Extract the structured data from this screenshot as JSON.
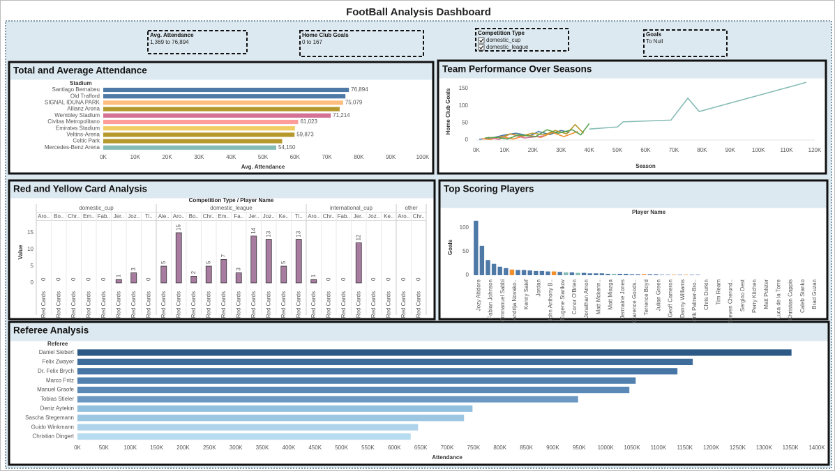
{
  "title": "FootBall Analysis Dashboard",
  "filters": [
    {
      "title": "Avg. Attendance",
      "value": "1,369 to 76,894"
    },
    {
      "title": "Home Club Goals",
      "value": "0 to 167"
    },
    {
      "title": "Competition Type",
      "options": [
        "domestic_cup",
        "domestic_league"
      ]
    },
    {
      "title": "Goals",
      "value": "To Null"
    }
  ],
  "chart_data": [
    {
      "type": "bar",
      "orientation": "horizontal",
      "title": "Total and Average Attendance",
      "y_label": "Stadium",
      "x_label": "Avg. Attendance",
      "categories": [
        "Santiago Bernabeu",
        "Old Trafford",
        "SIGNAL IDUNA PARK",
        "Allianz Arena",
        "Wembley Stadium",
        "Civitas Metropolitano",
        "Emirates Stadium",
        "Veltins-Arena",
        "Celtic Park",
        "Mercedes-Benz Arena"
      ],
      "values": [
        76894,
        75800,
        75079,
        74000,
        71214,
        61023,
        60000,
        59873,
        56000,
        54150
      ],
      "value_labels": [
        "76,894",
        null,
        "75,079",
        null,
        "71,214",
        "61,023",
        null,
        "59,873",
        null,
        "54,150"
      ],
      "colors": [
        "#4e79a7",
        "#4e79a7",
        "#ffbe7d",
        "#b6992d",
        "#d37295",
        "#ff9d9a",
        "#f1ce63",
        "#b6992d",
        "#b6992d",
        "#86bcb6"
      ],
      "xlim": [
        0,
        100000
      ],
      "xticks": [
        {
          "value": 0,
          "label": "0K"
        },
        {
          "value": 10000,
          "label": "10K"
        },
        {
          "value": 20000,
          "label": "20K"
        },
        {
          "value": 30000,
          "label": "30K"
        },
        {
          "value": 40000,
          "label": "40K"
        },
        {
          "value": 50000,
          "label": "50K"
        },
        {
          "value": 60000,
          "label": "60K"
        },
        {
          "value": 70000,
          "label": "70K"
        },
        {
          "value": 80000,
          "label": "80K"
        },
        {
          "value": 90000,
          "label": "90K"
        },
        {
          "value": 100000,
          "label": "100K"
        }
      ]
    },
    {
      "type": "line",
      "title": "Team Performance Over Seasons",
      "x_label": "Season",
      "y_label": "Home Club Goals",
      "series": [
        {
          "color": "#4e79a7",
          "x": [
            1000,
            6000,
            10000,
            14000,
            19000,
            22000,
            26000,
            30000,
            33000
          ],
          "values": [
            2,
            7,
            15,
            20,
            12,
            25,
            16,
            28,
            22
          ]
        },
        {
          "color": "#f28e2b",
          "x": [
            2000,
            5000,
            9000,
            13000,
            18000,
            23000,
            27000,
            31000,
            36000
          ],
          "values": [
            4,
            2,
            10,
            3,
            14,
            8,
            22,
            10,
            25
          ]
        },
        {
          "color": "#d37295",
          "x": [
            4000,
            8000,
            12000,
            17000,
            24000
          ],
          "values": [
            8,
            2,
            18,
            6,
            12
          ]
        },
        {
          "color": "#b6992d",
          "x": [
            8000,
            12000,
            16000,
            20000,
            24000,
            28000,
            32000,
            35000,
            38000
          ],
          "values": [
            5,
            18,
            12,
            20,
            15,
            28,
            18,
            45,
            20
          ]
        },
        {
          "color": "#59a14f",
          "x": [
            3000,
            7000,
            11000,
            15000,
            21000,
            25000,
            29000,
            34000,
            37000,
            40000
          ],
          "values": [
            6,
            8,
            3,
            15,
            10,
            30,
            20,
            30,
            15,
            48
          ]
        },
        {
          "color": "#86bcb6",
          "x": [
            40000,
            50000,
            52000,
            69000,
            75000,
            79000,
            117000
          ],
          "values": [
            32,
            38,
            53,
            58,
            122,
            83,
            168
          ]
        }
      ],
      "xlim": [
        0,
        120000
      ],
      "xticks": [
        {
          "value": 0,
          "label": "0K"
        },
        {
          "value": 10000,
          "label": "10K"
        },
        {
          "value": 20000,
          "label": "20K"
        },
        {
          "value": 30000,
          "label": "30K"
        },
        {
          "value": 40000,
          "label": "40K"
        },
        {
          "value": 50000,
          "label": "50K"
        },
        {
          "value": 60000,
          "label": "60K"
        },
        {
          "value": 70000,
          "label": "70K"
        },
        {
          "value": 80000,
          "label": "80K"
        },
        {
          "value": 90000,
          "label": "90K"
        },
        {
          "value": 100000,
          "label": "100K"
        },
        {
          "value": 110000,
          "label": "110K"
        },
        {
          "value": 120000,
          "label": "120K"
        }
      ],
      "ylim": [
        0,
        175
      ],
      "yticks": [
        0,
        50,
        100,
        150
      ]
    },
    {
      "type": "grouped_bar",
      "title": "Red and Yellow Card Analysis",
      "header": "Competition Type / Player Name",
      "y_label": "Value",
      "measure": "Red Cards",
      "color": "#a87ca0",
      "groups": [
        {
          "name": "domestic_cup",
          "categories": [
            "Aro..",
            "Bo..",
            "Chr..",
            "Em..",
            "Fab..",
            "Jer..",
            "Joz..",
            "Ti.."
          ],
          "values": [
            0,
            0,
            0,
            0,
            0,
            1,
            3,
            0
          ]
        },
        {
          "name": "domestic_league",
          "categories": [
            "Ale..",
            "Aro..",
            "Bo..",
            "Chr..",
            "Em..",
            "Fa..",
            "Jer..",
            "Joz..",
            "Ke..",
            "Ti.."
          ],
          "values": [
            5,
            15,
            2,
            5,
            7,
            3,
            14,
            13,
            5,
            13
          ]
        },
        {
          "name": "international_cup",
          "categories": [
            "Aro..",
            "Chr..",
            "Fab..",
            "Jer..",
            "Joz..",
            "Ke.."
          ],
          "values": [
            1,
            0,
            0,
            12,
            0,
            0
          ]
        },
        {
          "name": "other",
          "categories": [
            "Aro..",
            "Chr.."
          ],
          "values": [
            0,
            0
          ]
        }
      ],
      "ylim": [
        0,
        19
      ],
      "yticks": [
        0,
        5,
        10,
        15
      ]
    },
    {
      "type": "bar",
      "orientation": "vertical",
      "title": "Top Scoring Players",
      "x_label": "Player Name",
      "y_label": "Goals",
      "categories": [
        "Jozy Altidore",
        null,
        "Fabian Johnson",
        null,
        "Emmanuel Sabbi",
        null,
        "Andrija Novako..",
        null,
        "Kenny Saief",
        null,
        "Jordan",
        null,
        "John Anthony B..",
        null,
        "Eugene Starikov",
        null,
        "Conor O'Brien",
        null,
        "Jonathan Amon",
        null,
        "Matt Mckenn..",
        null,
        "Matt Miazga",
        null,
        "Jermaine Jones",
        null,
        "Clarence Goods..",
        null,
        "Terrence Boyd",
        null,
        "Julian Green",
        null,
        "Geoff Cameron",
        null,
        "Danny Williams",
        null,
        "Erik Palmer-Bro..",
        null,
        "Chris Durkin",
        null,
        "Tim Ream",
        null,
        "Steven Cherund..",
        null,
        "Sergino Dest",
        null,
        "Perry Kitchen",
        null,
        "Matt Polster",
        null,
        "Luca de la Torre",
        null,
        "Christian Cappis",
        null,
        "Caleb Stanko",
        null,
        "Brad Guzan",
        null
      ],
      "values": [
        115,
        62,
        32,
        24,
        18,
        15,
        12,
        11,
        11,
        10,
        9,
        9,
        8,
        8,
        7,
        6,
        6,
        5,
        5,
        4,
        4,
        4,
        3,
        3,
        3,
        3,
        2,
        2,
        2,
        2,
        2,
        1,
        1,
        1,
        1,
        1,
        1,
        1,
        0,
        0,
        0,
        0,
        0,
        0,
        0,
        0,
        0,
        0,
        0,
        0,
        0,
        0,
        0,
        0,
        0,
        0,
        0,
        0
      ],
      "colors": [
        "#4e79a7",
        "#4e79a7",
        "#4e79a7",
        "#4e79a7",
        "#4e79a7",
        "#4e79a7",
        "#f28e2b",
        "#4e79a7",
        "#4e79a7",
        "#4e79a7",
        "#4e79a7",
        "#4e79a7",
        "#4e79a7",
        "#f28e2b",
        "#4e79a7",
        "#86bcb6",
        "#4e79a7",
        "#86bcb6",
        "#4e79a7",
        "#4e79a7",
        "#4e79a7",
        "#4e79a7",
        "#4e79a7",
        "#86bcb6",
        "#4e79a7",
        "#4e79a7",
        "#4e79a7",
        "#4e79a7",
        "#f28e2b",
        "#4e79a7",
        "#4e79a7",
        "#4e79a7",
        "#4e79a7",
        "#f28e2b",
        "#4e79a7",
        "#f28e2b",
        "#4e79a7",
        "#4e79a7",
        "#4e79a7",
        "#4e79a7",
        "#4e79a7",
        "#4e79a7",
        "#4e79a7",
        "#4e79a7",
        "#4e79a7",
        "#4e79a7",
        "#4e79a7",
        "#4e79a7",
        "#4e79a7",
        "#4e79a7",
        "#4e79a7",
        "#4e79a7",
        "#4e79a7",
        "#4e79a7",
        "#4e79a7",
        "#4e79a7",
        "#4e79a7",
        "#4e79a7"
      ],
      "ylim": [
        0,
        125
      ],
      "yticks": [
        0,
        50,
        100
      ]
    },
    {
      "type": "bar",
      "orientation": "horizontal",
      "title": "Referee Analysis",
      "y_label": "Referee",
      "x_label": "Attendance",
      "categories": [
        "Daniel Siebert",
        "Felix Zwayer",
        "Dr. Felix Brych",
        "Marco Fritz",
        "Manuel Graofe",
        "Tobias Stieler",
        "Deniz Aytekin",
        "Sascha Stegemann",
        "Guido Winkmann",
        "Christian Dingert"
      ],
      "values": [
        1352000,
        1165000,
        1136000,
        1057000,
        1045000,
        948000,
        748000,
        732000,
        645000,
        631000
      ],
      "colors": [
        "#2c5985",
        "#3e6c9b",
        "#4776a6",
        "#5281b0",
        "#5a89b7",
        "#6b98c2",
        "#94c0df",
        "#9dc6e3",
        "#aed3ea",
        "#b8dcef"
      ],
      "xlim": [
        0,
        1400000
      ],
      "xticks": [
        {
          "value": 0,
          "label": "0K"
        },
        {
          "value": 50000,
          "label": "50K"
        },
        {
          "value": 100000,
          "label": "100K"
        },
        {
          "value": 150000,
          "label": "150K"
        },
        {
          "value": 200000,
          "label": "200K"
        },
        {
          "value": 250000,
          "label": "250K"
        },
        {
          "value": 300000,
          "label": "300K"
        },
        {
          "value": 350000,
          "label": "350K"
        },
        {
          "value": 400000,
          "label": "400K"
        },
        {
          "value": 450000,
          "label": "450K"
        },
        {
          "value": 500000,
          "label": "500K"
        },
        {
          "value": 550000,
          "label": "550K"
        },
        {
          "value": 600000,
          "label": "600K"
        },
        {
          "value": 650000,
          "label": "650K"
        },
        {
          "value": 700000,
          "label": "700K"
        },
        {
          "value": 750000,
          "label": "750K"
        },
        {
          "value": 800000,
          "label": "800K"
        },
        {
          "value": 850000,
          "label": "850K"
        },
        {
          "value": 900000,
          "label": "900K"
        },
        {
          "value": 950000,
          "label": "950K"
        },
        {
          "value": 1000000,
          "label": "1000K"
        },
        {
          "value": 1050000,
          "label": "1050K"
        },
        {
          "value": 1100000,
          "label": "1100K"
        },
        {
          "value": 1150000,
          "label": "1150K"
        },
        {
          "value": 1200000,
          "label": "1200K"
        },
        {
          "value": 1250000,
          "label": "1250K"
        },
        {
          "value": 1300000,
          "label": "1300K"
        },
        {
          "value": 1350000,
          "label": "1350K"
        },
        {
          "value": 1400000,
          "label": "1400K"
        }
      ]
    }
  ]
}
